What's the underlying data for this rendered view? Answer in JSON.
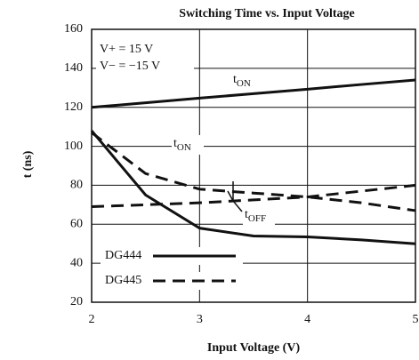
{
  "chart_data": {
    "type": "line",
    "title": "Switching Time vs. Input Voltage",
    "x_label": "Input Voltage (V)",
    "y_label": "t (ns)",
    "info": [
      "V+ = 15 V",
      "V− = −15 V"
    ],
    "x": [
      2,
      2.5,
      3,
      3.5,
      4,
      4.5,
      5
    ],
    "series": [
      {
        "style": "solid",
        "color": "#111111",
        "values": [
          120,
          122.3,
          124.7,
          127,
          129.3,
          131.7,
          134
        ]
      },
      {
        "style": "solid",
        "color": "#111111",
        "values": [
          108,
          75,
          58,
          54,
          53.5,
          52,
          50
        ]
      },
      {
        "style": "dashed",
        "color": "#111111",
        "values": [
          107,
          86,
          78,
          76,
          74,
          71,
          67
        ]
      },
      {
        "style": "dashed",
        "color": "#111111",
        "values": [
          69,
          70,
          71,
          72.5,
          74,
          77,
          80
        ]
      }
    ],
    "legend": [
      {
        "name": "DG444",
        "style": "solid"
      },
      {
        "name": "DG445",
        "style": "dashed"
      }
    ],
    "annotations": [
      {
        "text": "t",
        "sub": "ON"
      },
      {
        "text": "t",
        "sub": "ON"
      },
      {
        "text": "t",
        "sub": "OFF"
      }
    ],
    "xlim": [
      2,
      5
    ],
    "xticks": [
      2,
      3,
      4,
      5
    ],
    "ylim": [
      20,
      160
    ],
    "yticks": [
      20,
      40,
      60,
      80,
      100,
      120,
      140,
      160
    ],
    "grid": true
  }
}
